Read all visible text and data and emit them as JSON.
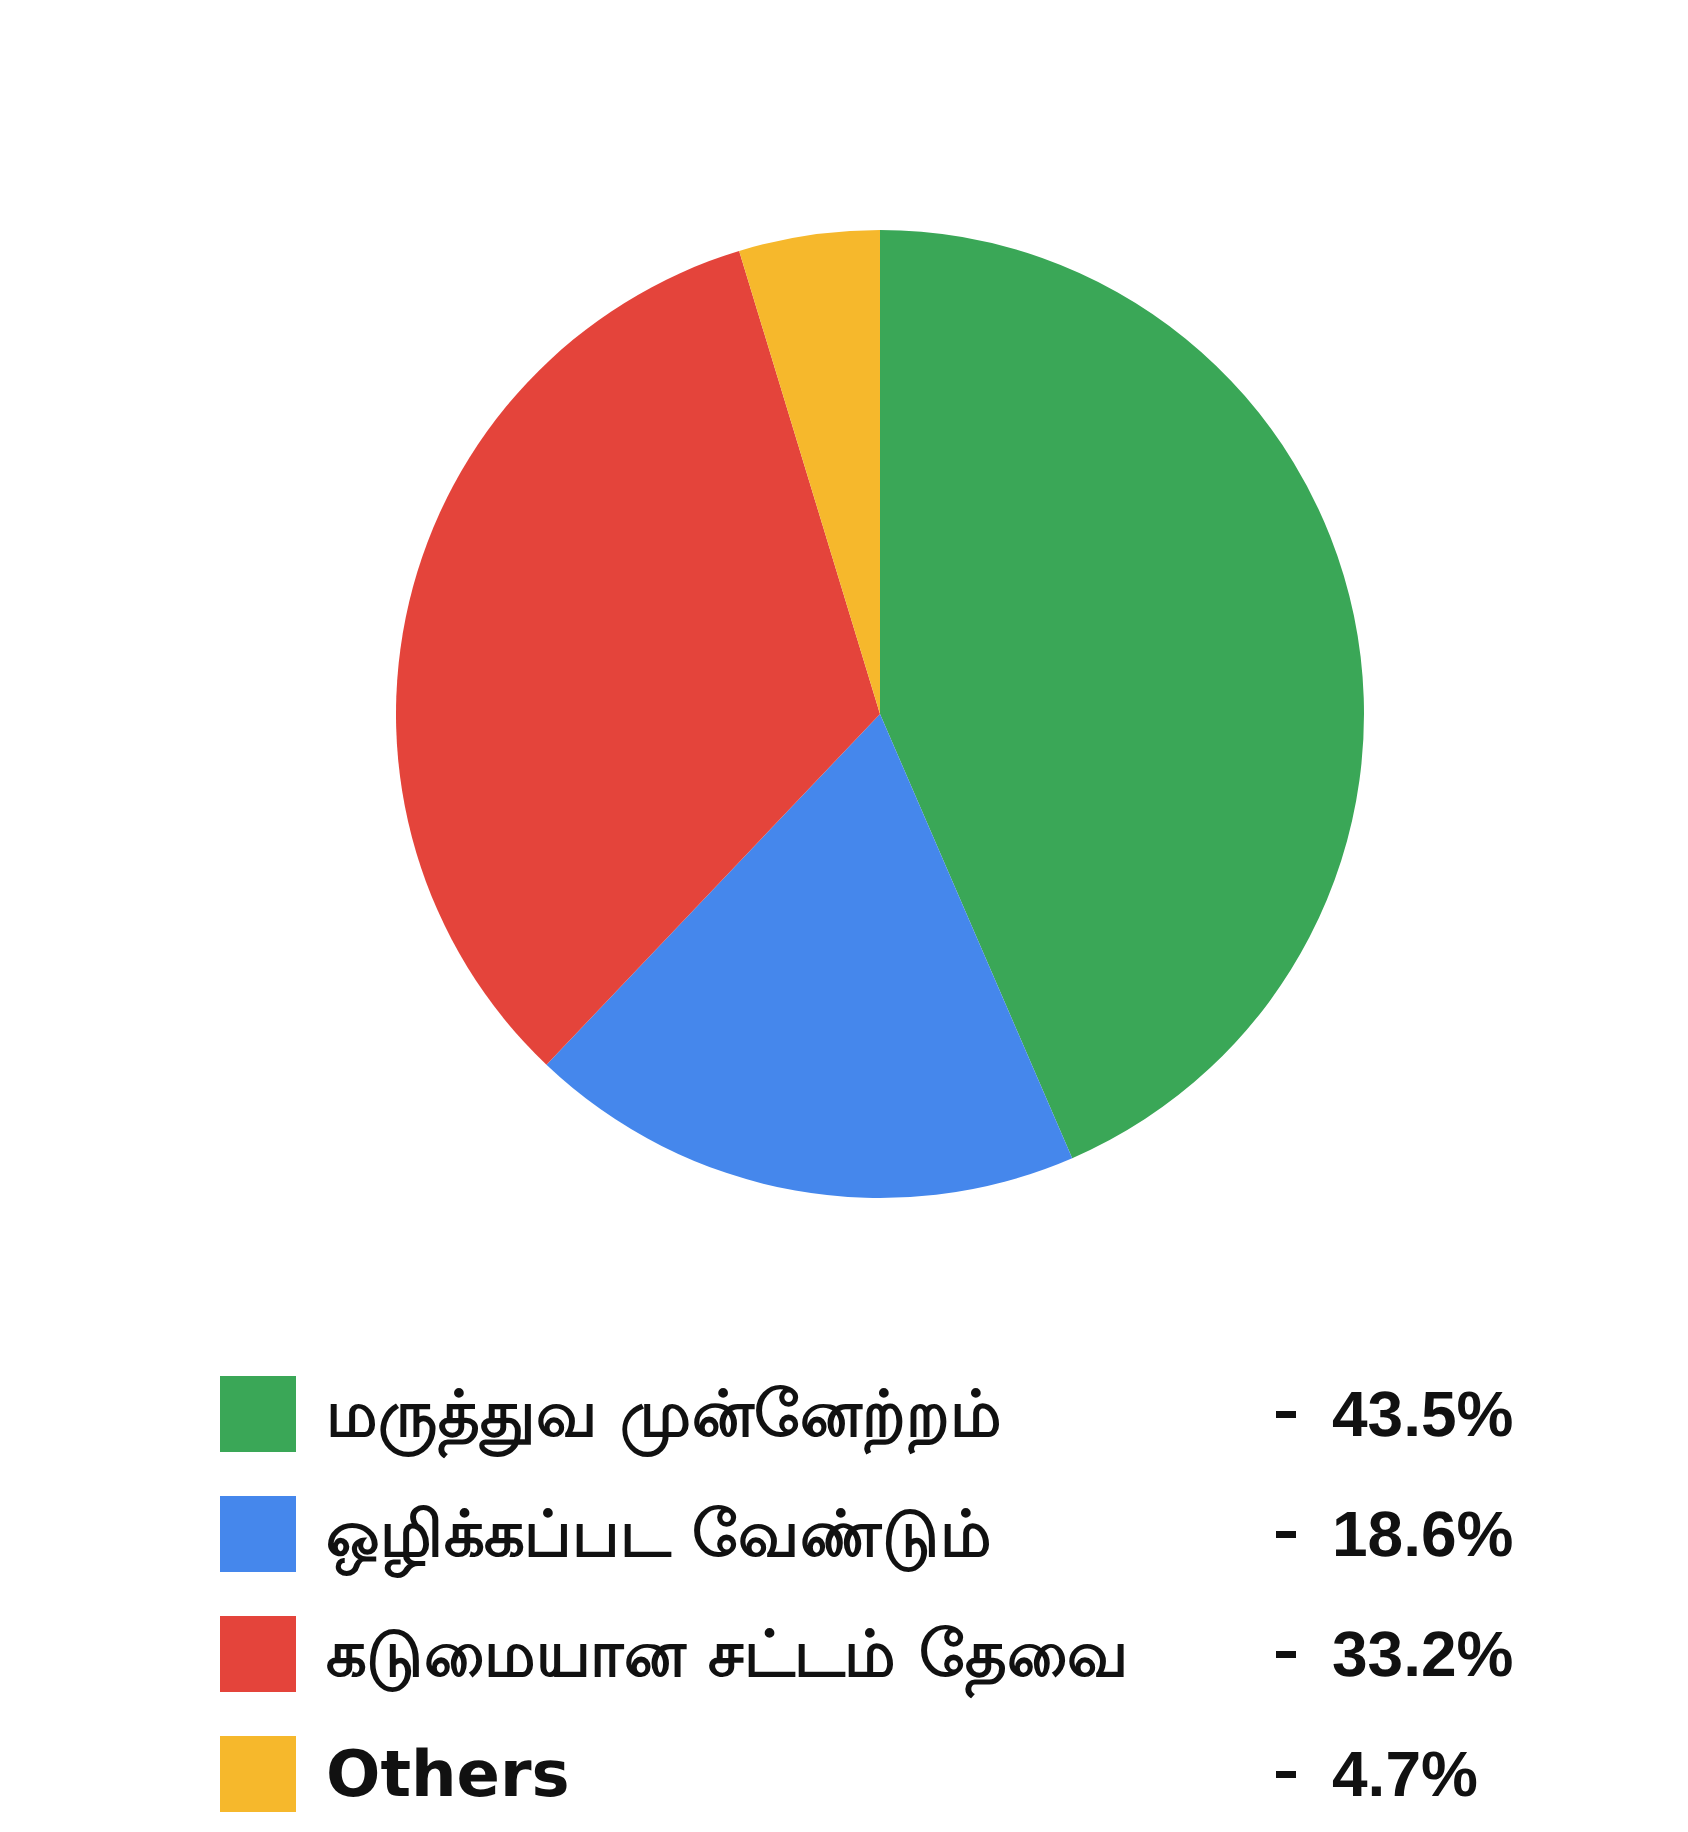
{
  "chart_data": {
    "type": "pie",
    "categories": [
      "மருத்துவ முன்னேற்றம்",
      "ஒழிக்கப்பட வேண்டும்",
      "கடுமையான சட்டம் தேவை",
      "Others"
    ],
    "values": [
      43.5,
      18.6,
      33.2,
      4.7
    ],
    "colors": [
      "#3aa757",
      "#4587ec",
      "#e4443b",
      "#f6b82c"
    ],
    "value_labels": [
      "43.5%",
      "18.6%",
      "33.2%",
      "4.7%"
    ],
    "legend": "bottom"
  }
}
